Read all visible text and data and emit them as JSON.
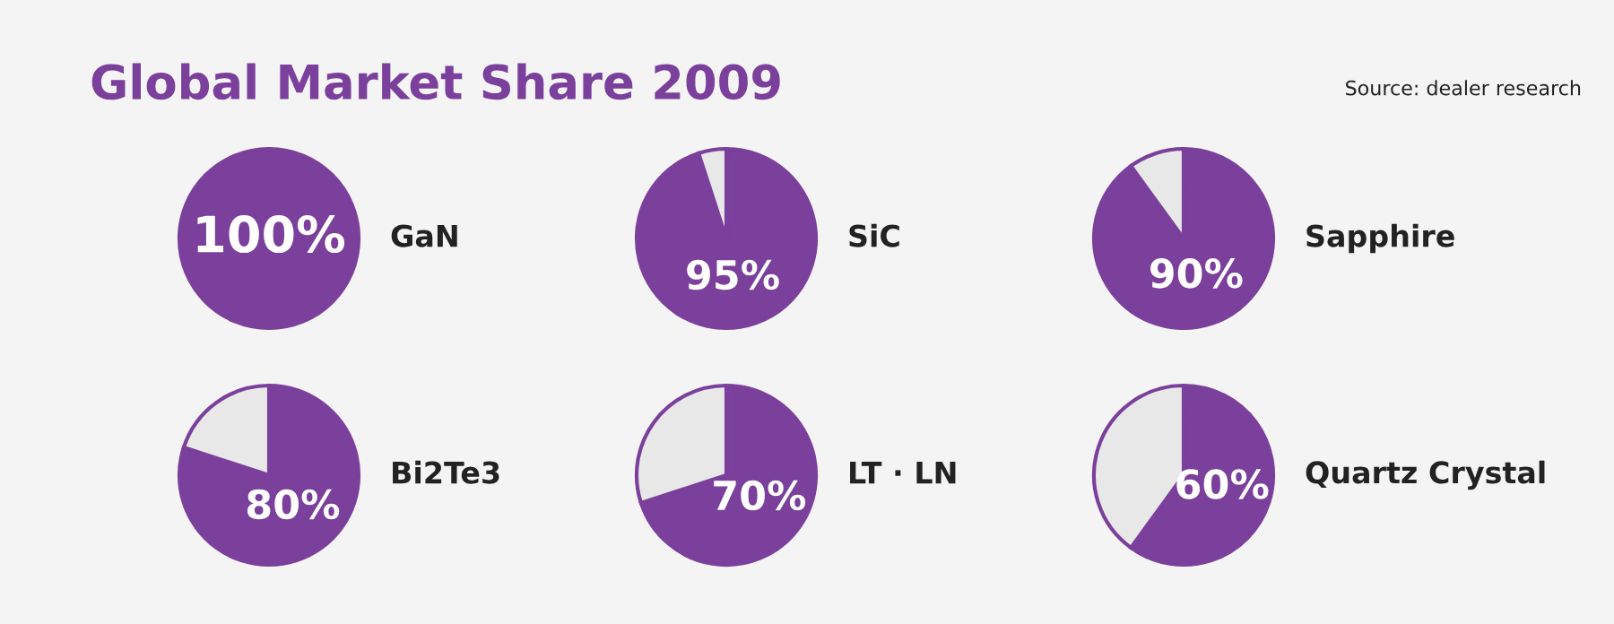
{
  "chart_data": [
    {
      "type": "pie",
      "title": "GaN",
      "categories": [
        null
      ],
      "values": [
        100
      ],
      "colors": [
        "#7b3f9c"
      ],
      "value_labels": [
        "100%"
      ],
      "annotations": [
        "Global Market Share 2009",
        "Source: dealer research"
      ]
    },
    {
      "type": "pie",
      "title": "SiC",
      "categories": [
        null,
        null
      ],
      "values": [
        95,
        5
      ],
      "colors": [
        "#7b3f9c",
        "#e8e8e8"
      ],
      "value_labels": [
        "95%",
        null
      ]
    },
    {
      "type": "pie",
      "title": "Sapphire",
      "categories": [
        null,
        null
      ],
      "values": [
        90,
        10
      ],
      "colors": [
        "#7b3f9c",
        "#e8e8e8"
      ],
      "value_labels": [
        "90%",
        null
      ]
    },
    {
      "type": "pie",
      "title": "Bi2Te3",
      "categories": [
        null,
        null
      ],
      "values": [
        80,
        20
      ],
      "colors": [
        "#7b3f9c",
        "#e8e8e8"
      ],
      "value_labels": [
        "80%",
        null
      ]
    },
    {
      "type": "pie",
      "title": "LT · LN",
      "categories": [
        null,
        null
      ],
      "values": [
        70,
        30
      ],
      "colors": [
        "#7b3f9c",
        "#e8e8e8"
      ],
      "value_labels": [
        "70%",
        null
      ]
    },
    {
      "type": "pie",
      "title": "Quartz Crystal",
      "categories": [
        null,
        null
      ],
      "values": [
        60,
        40
      ],
      "colors": [
        "#7b3f9c",
        "#e8e8e8"
      ],
      "value_labels": [
        "60%",
        null
      ]
    }
  ]
}
